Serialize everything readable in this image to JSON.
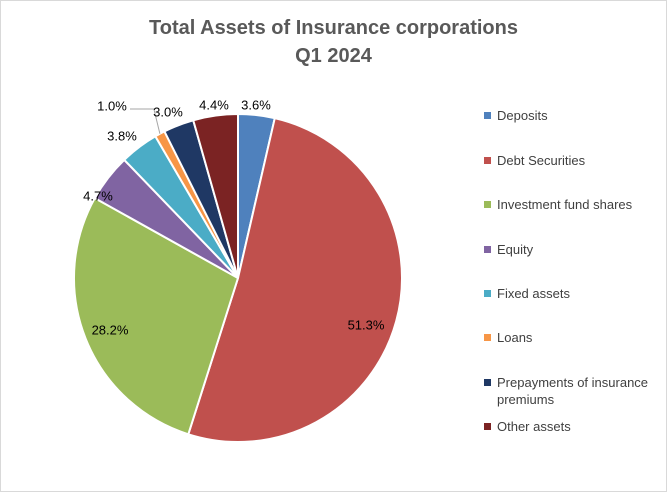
{
  "chart_data": {
    "type": "pie",
    "title": "Total Assets of Insurance corporations",
    "subtitle": "Q1 2024",
    "series": [
      {
        "name": "Deposits",
        "value": 3.6,
        "label": "3.6%",
        "color": "#4f81bd"
      },
      {
        "name": "Debt Securities",
        "value": 51.3,
        "label": "51.3%",
        "color": "#c0504d"
      },
      {
        "name": "Investment fund shares",
        "value": 28.2,
        "label": "28.2%",
        "color": "#9bbb59"
      },
      {
        "name": "Equity",
        "value": 4.7,
        "label": "4.7%",
        "color": "#8064a2"
      },
      {
        "name": "Fixed assets",
        "value": 3.8,
        "label": "3.8%",
        "color": "#4bacc6"
      },
      {
        "name": "Loans",
        "value": 1.0,
        "label": "1.0%",
        "color": "#f79646"
      },
      {
        "name": "Prepayments of insurance premiums",
        "value": 3.0,
        "label": "3.0%",
        "color": "#1f3864"
      },
      {
        "name": "Other assets",
        "value": 4.4,
        "label": "4.4%",
        "color": "#7b2323"
      }
    ],
    "legend_position": "right"
  }
}
